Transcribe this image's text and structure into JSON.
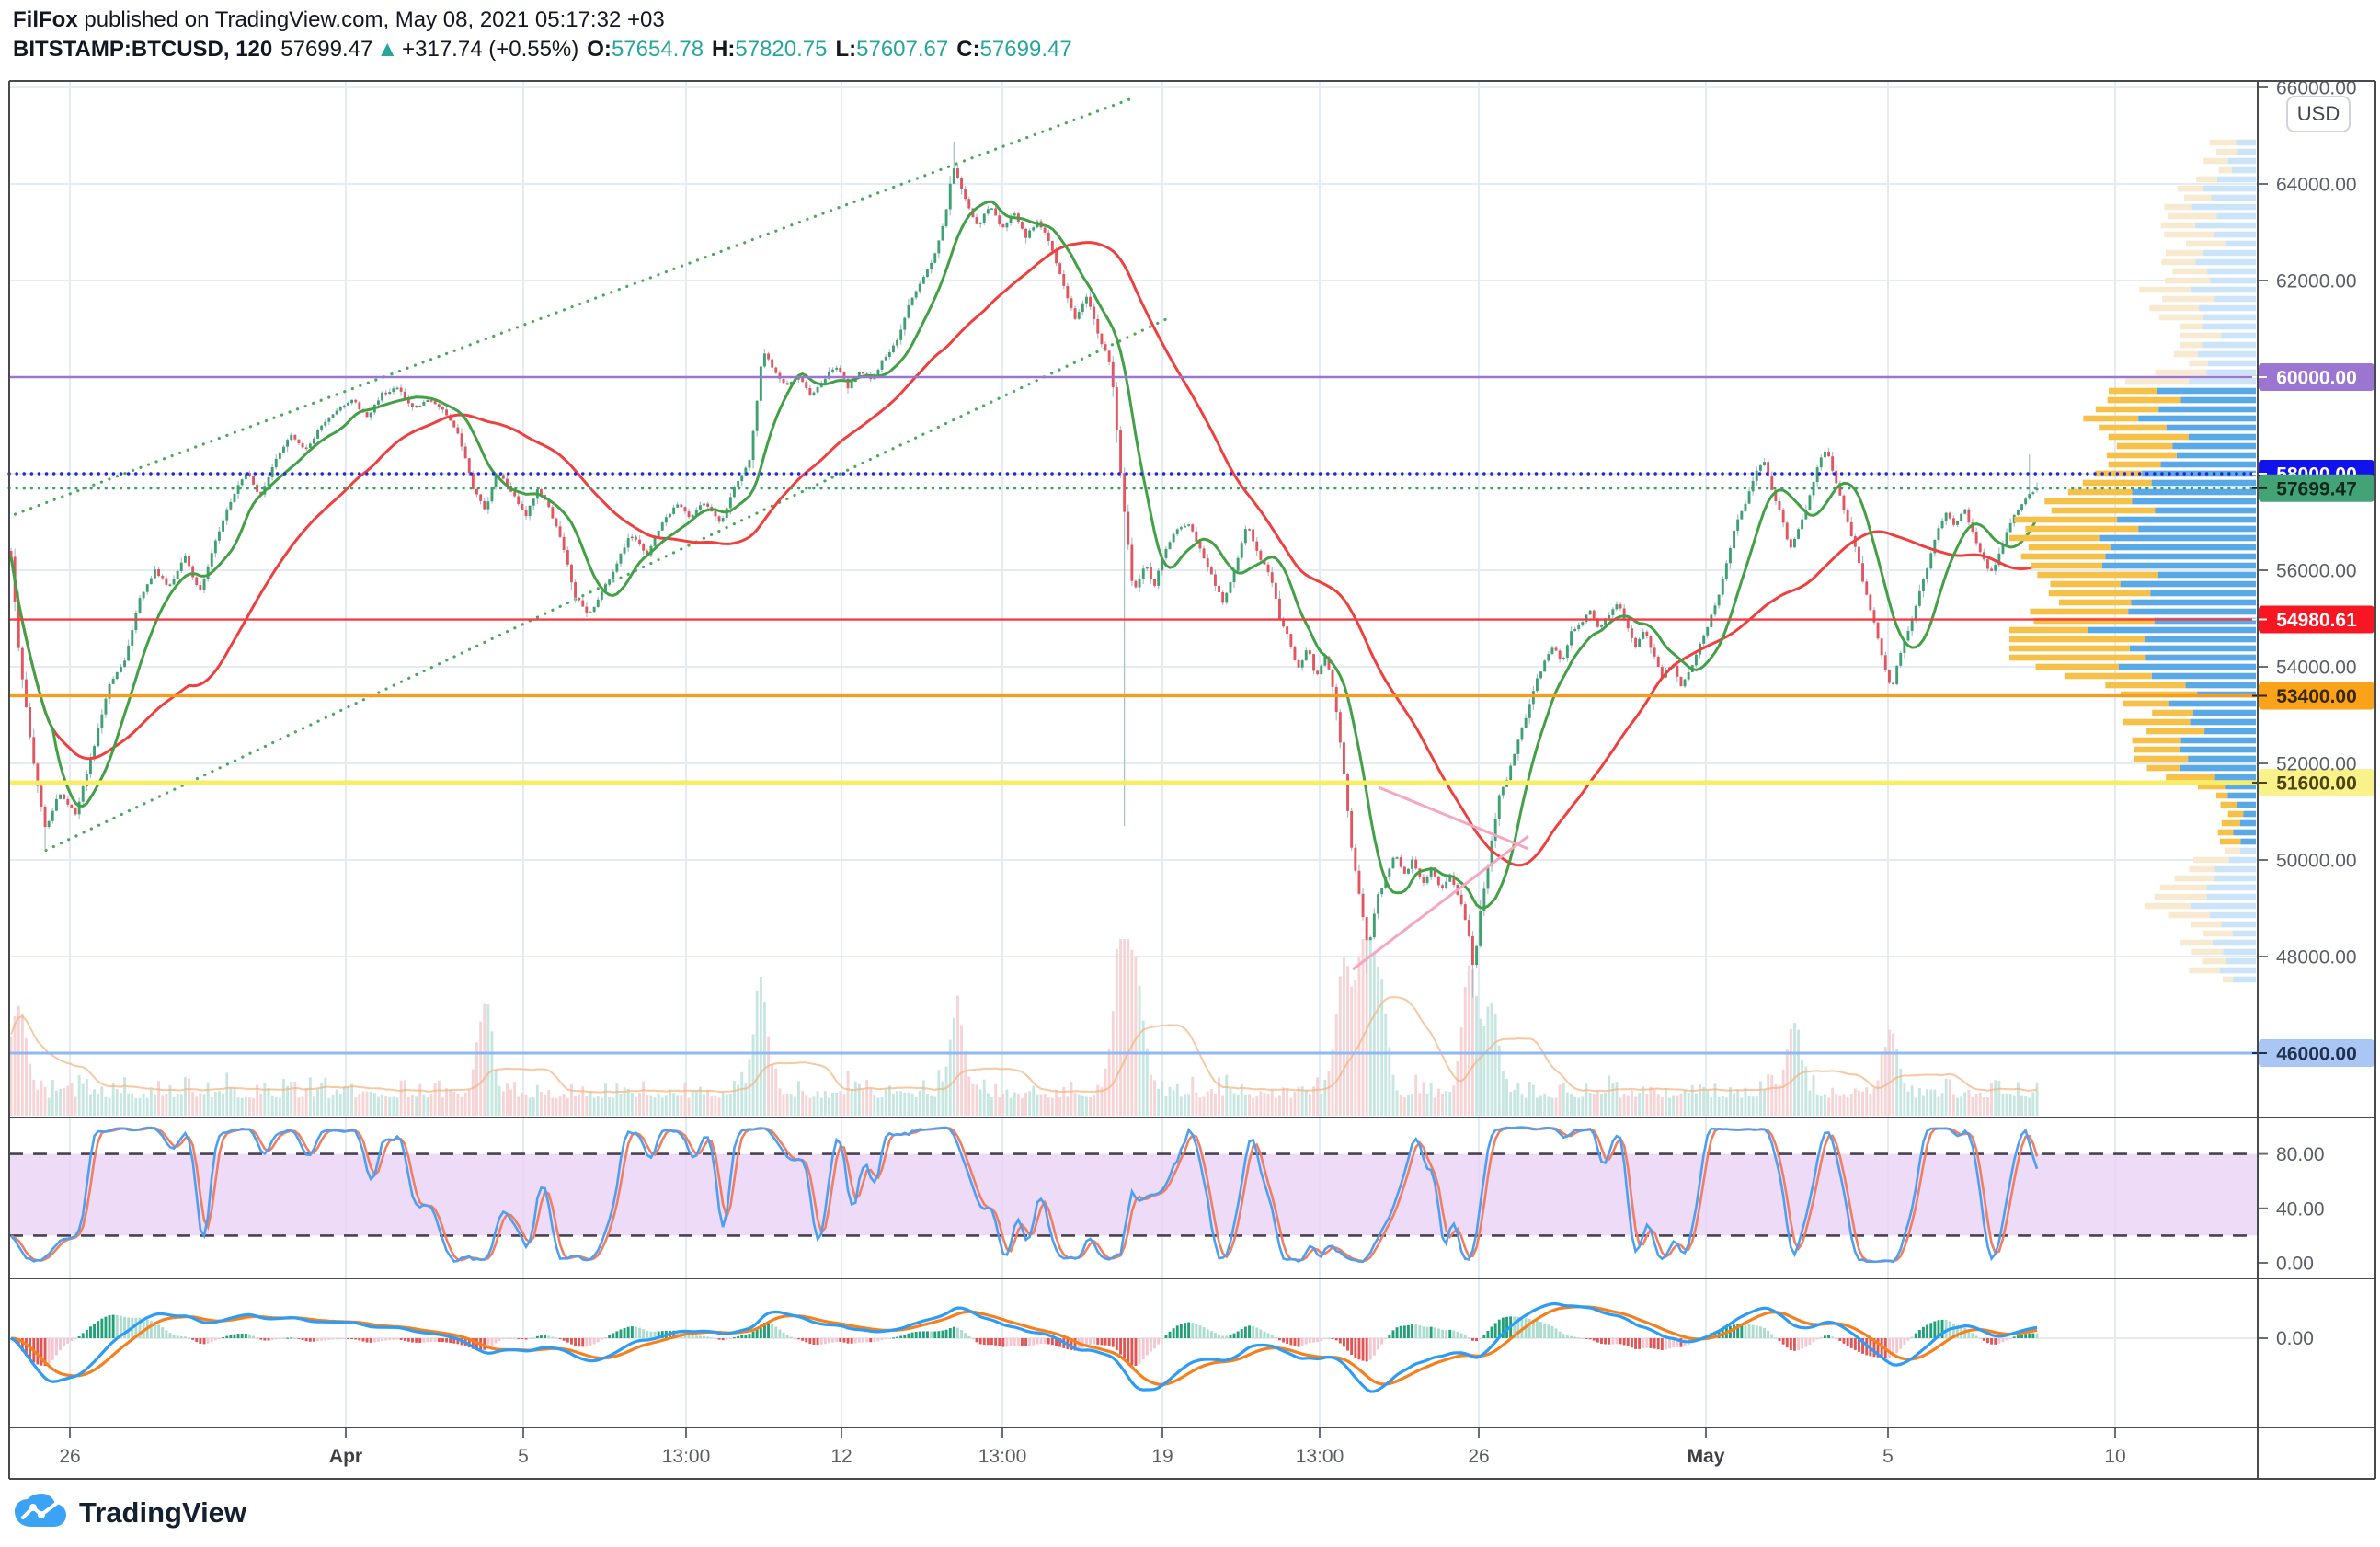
{
  "header": {
    "line1_bold": "FilFox",
    "line1_rest": " published on TradingView.com, May 08, 2021 05:17:32 +03",
    "symbol": "BITSTAMP:BTCUSD, 120",
    "price": "57699.47",
    "arrow": "▲",
    "change": "+317.74 (+0.55%)",
    "o_label": "O:",
    "o_value": "57654.78",
    "h_label": "H:",
    "h_value": "57820.75",
    "l_label": "L:",
    "l_value": "57607.67",
    "c_label": "C:",
    "c_value": "57699.47"
  },
  "price_axis": {
    "currency": "USD",
    "plain_ticks": [
      {
        "price": 66000,
        "label": "66000.00"
      },
      {
        "price": 64000,
        "label": "64000.00"
      },
      {
        "price": 62000,
        "label": "62000.00"
      },
      {
        "price": 56000,
        "label": "56000.00"
      },
      {
        "price": 54000,
        "label": "54000.00"
      },
      {
        "price": 52000,
        "label": "52000.00"
      },
      {
        "price": 50000,
        "label": "50000.00"
      },
      {
        "price": 48000,
        "label": "48000.00"
      }
    ]
  },
  "indicator_axis": {
    "stoch_ticks": [
      {
        "value": 80,
        "label": "80.00"
      },
      {
        "value": 40,
        "label": "40.00"
      },
      {
        "value": 0,
        "label": "0.00"
      }
    ],
    "macd_ticks": [
      {
        "value": 0,
        "label": "0.00"
      }
    ]
  },
  "logo": {
    "text": "TradingView"
  },
  "colors": {
    "up": "#3fa172",
    "down": "#e4565f",
    "wick": "#a6becb",
    "ma_fast": "#43a047",
    "ma_slow": "#ef4040",
    "grid": "#e4ebf2",
    "frame": "#474b50",
    "axis_text": "#595d66",
    "vol_up": "#c8e6e0",
    "vol_down": "#f6d4d6",
    "vol_ma": "#f4b079",
    "profile_yellow": "#f5c149",
    "profile_blue": "#59a9e6",
    "profile_pale_yellow": "#f8ead0",
    "profile_pale_blue": "#cbe4f7",
    "channel": "#3fa651",
    "triangle": "#f4a7c0",
    "stoch_k": "#4f9ff0",
    "stoch_d": "#ef7f63",
    "stoch_band": "#e8d2f6",
    "stoch_dash": "#494351",
    "macd_line": "#2d9cf4",
    "macd_signal": "#f5801e",
    "hist_pos": "#22a07a",
    "hist_pos_pale": "#abdcce",
    "hist_neg": "#e25555",
    "hist_neg_pale": "#f6c6d0"
  },
  "chart_data": {
    "type": "candlestick",
    "symbol": "BITSTAMP:BTCUSD",
    "interval": "120",
    "title": "BTC/USD 2-hour chart, Bitstamp, published May 08 2021 05:17:32 +03",
    "ylabel": "USD",
    "ylim": [
      45600,
      66200
    ],
    "grid": true,
    "bars": 536,
    "ohlc_current": {
      "open": 57654.78,
      "high": 57820.75,
      "low": 57607.67,
      "close": 57699.47,
      "change": 317.74,
      "change_pct": 0.55
    },
    "x_ticks": [
      {
        "x": 76,
        "label": "26"
      },
      {
        "x": 376,
        "label": "Apr",
        "major": true
      },
      {
        "x": 569,
        "label": "5"
      },
      {
        "x": 746,
        "label": "13:00"
      },
      {
        "x": 915,
        "label": "12"
      },
      {
        "x": 1090,
        "label": "13:00"
      },
      {
        "x": 1264,
        "label": "19"
      },
      {
        "x": 1435,
        "label": "13:00"
      },
      {
        "x": 1608,
        "label": "26"
      },
      {
        "x": 1855,
        "label": "May",
        "major": true
      },
      {
        "x": 2053,
        "label": "5"
      },
      {
        "x": 2300,
        "label": "10"
      }
    ],
    "levels": [
      {
        "price": 60000,
        "color": "#9b76d0",
        "style": "solid",
        "width": 2.6,
        "badge": "60000.00",
        "badge_bg": "#9b76d0",
        "badge_fg": "#ffffff"
      },
      {
        "price": 58000,
        "color": "#2326dd",
        "style": "dotted",
        "width": 3.4,
        "badge": "58000.00",
        "badge_bg": "#1212ef",
        "badge_fg": "#ffffff"
      },
      {
        "price": 57699.47,
        "color": "#3aa06c",
        "style": "dotted",
        "width": 3.2,
        "badge": "57699.47",
        "badge_bg": "#43a377",
        "badge_fg": "#0e2a1c"
      },
      {
        "price": 54980.61,
        "color": "#f43b47",
        "style": "solid",
        "width": 2.4,
        "badge": "54980.61",
        "badge_bg": "#f71622",
        "badge_fg": "#ffffff"
      },
      {
        "price": 53400,
        "color": "#f89c1b",
        "style": "solid",
        "width": 3.2,
        "badge": "53400.00",
        "badge_bg": "#f9a21a",
        "badge_fg": "#3a2703"
      },
      {
        "price": 51600,
        "color": "#f7ee64",
        "style": "solid",
        "width": 5,
        "badge": "51600.00",
        "badge_bg": "#f9f28b",
        "badge_fg": "#4c440c"
      },
      {
        "price": 46000,
        "color": "#8fb8f4",
        "style": "solid",
        "width": 3,
        "badge": "46000.00",
        "badge_bg": "#a9c6f5",
        "badge_fg": "#20304f"
      }
    ],
    "channel_lines": [
      {
        "x1": 8,
        "p1": 57100,
        "x2": 1235,
        "p2": 65800,
        "note": "ascending channel upper"
      },
      {
        "x1": 50,
        "p1": 50200,
        "x2": 1268,
        "p2": 61200,
        "note": "ascending channel lower"
      }
    ],
    "triangle_pattern": {
      "apex": [
        1648,
        917
      ],
      "upper_left": [
        1499,
        856
      ],
      "lower_left": [
        1471,
        1054
      ]
    },
    "price_anchors": [
      [
        0,
        56300
      ],
      [
        0.004,
        54250
      ],
      [
        0.011,
        52050
      ],
      [
        0.017,
        50650
      ],
      [
        0.024,
        51400
      ],
      [
        0.032,
        50950
      ],
      [
        0.041,
        52350
      ],
      [
        0.048,
        53600
      ],
      [
        0.056,
        54100
      ],
      [
        0.063,
        55350
      ],
      [
        0.071,
        56000
      ],
      [
        0.078,
        55650
      ],
      [
        0.086,
        56300
      ],
      [
        0.093,
        55500
      ],
      [
        0.101,
        56600
      ],
      [
        0.108,
        57400
      ],
      [
        0.116,
        58050
      ],
      [
        0.123,
        57550
      ],
      [
        0.131,
        58350
      ],
      [
        0.138,
        58800
      ],
      [
        0.146,
        58500
      ],
      [
        0.153,
        59000
      ],
      [
        0.161,
        59300
      ],
      [
        0.168,
        59550
      ],
      [
        0.176,
        59150
      ],
      [
        0.183,
        59650
      ],
      [
        0.191,
        59800
      ],
      [
        0.198,
        59350
      ],
      [
        0.206,
        59550
      ],
      [
        0.213,
        59300
      ],
      [
        0.221,
        58800
      ],
      [
        0.228,
        57700
      ],
      [
        0.234,
        57250
      ],
      [
        0.24,
        58050
      ],
      [
        0.248,
        57550
      ],
      [
        0.254,
        57100
      ],
      [
        0.26,
        57700
      ],
      [
        0.266,
        57250
      ],
      [
        0.272,
        56600
      ],
      [
        0.278,
        55500
      ],
      [
        0.285,
        55050
      ],
      [
        0.293,
        55650
      ],
      [
        0.299,
        56150
      ],
      [
        0.306,
        56750
      ],
      [
        0.314,
        56300
      ],
      [
        0.321,
        56950
      ],
      [
        0.329,
        57400
      ],
      [
        0.335,
        57100
      ],
      [
        0.342,
        57400
      ],
      [
        0.35,
        56950
      ],
      [
        0.357,
        57700
      ],
      [
        0.365,
        58350
      ],
      [
        0.371,
        60550
      ],
      [
        0.377,
        60100
      ],
      [
        0.383,
        59800
      ],
      [
        0.389,
        60000
      ],
      [
        0.395,
        59600
      ],
      [
        0.401,
        59950
      ],
      [
        0.407,
        60250
      ],
      [
        0.413,
        59800
      ],
      [
        0.419,
        60100
      ],
      [
        0.425,
        59950
      ],
      [
        0.431,
        60400
      ],
      [
        0.437,
        60700
      ],
      [
        0.443,
        61500
      ],
      [
        0.449,
        62000
      ],
      [
        0.455,
        62450
      ],
      [
        0.461,
        63300
      ],
      [
        0.465,
        64400
      ],
      [
        0.471,
        63700
      ],
      [
        0.477,
        63100
      ],
      [
        0.483,
        63550
      ],
      [
        0.489,
        63100
      ],
      [
        0.495,
        63400
      ],
      [
        0.501,
        62900
      ],
      [
        0.507,
        63250
      ],
      [
        0.513,
        62750
      ],
      [
        0.519,
        62000
      ],
      [
        0.525,
        61200
      ],
      [
        0.531,
        61650
      ],
      [
        0.537,
        60850
      ],
      [
        0.543,
        60250
      ],
      [
        0.549,
        57400
      ],
      [
        0.554,
        55500
      ],
      [
        0.56,
        56150
      ],
      [
        0.564,
        55650
      ],
      [
        0.57,
        56450
      ],
      [
        0.575,
        56800
      ],
      [
        0.581,
        56950
      ],
      [
        0.587,
        56450
      ],
      [
        0.593,
        55850
      ],
      [
        0.598,
        55350
      ],
      [
        0.604,
        56000
      ],
      [
        0.61,
        56950
      ],
      [
        0.616,
        56300
      ],
      [
        0.622,
        55850
      ],
      [
        0.626,
        55050
      ],
      [
        0.631,
        54550
      ],
      [
        0.635,
        53950
      ],
      [
        0.64,
        54400
      ],
      [
        0.644,
        53800
      ],
      [
        0.649,
        54250
      ],
      [
        0.653,
        53450
      ],
      [
        0.658,
        51750
      ],
      [
        0.662,
        50150
      ],
      [
        0.667,
        48900
      ],
      [
        0.67,
        48100
      ],
      [
        0.674,
        49200
      ],
      [
        0.679,
        49700
      ],
      [
        0.683,
        50150
      ],
      [
        0.688,
        49700
      ],
      [
        0.692,
        50000
      ],
      [
        0.697,
        49500
      ],
      [
        0.701,
        49850
      ],
      [
        0.706,
        49350
      ],
      [
        0.71,
        49700
      ],
      [
        0.715,
        49200
      ],
      [
        0.719,
        48600
      ],
      [
        0.722,
        47700
      ],
      [
        0.725,
        48900
      ],
      [
        0.73,
        50150
      ],
      [
        0.734,
        51250
      ],
      [
        0.739,
        51750
      ],
      [
        0.743,
        52350
      ],
      [
        0.748,
        53000
      ],
      [
        0.752,
        53600
      ],
      [
        0.757,
        54100
      ],
      [
        0.761,
        54400
      ],
      [
        0.766,
        54100
      ],
      [
        0.77,
        54700
      ],
      [
        0.775,
        54900
      ],
      [
        0.779,
        55200
      ],
      [
        0.784,
        54750
      ],
      [
        0.788,
        55050
      ],
      [
        0.793,
        55350
      ],
      [
        0.797,
        54900
      ],
      [
        0.802,
        54400
      ],
      [
        0.806,
        54750
      ],
      [
        0.811,
        54250
      ],
      [
        0.815,
        53800
      ],
      [
        0.82,
        54100
      ],
      [
        0.824,
        53600
      ],
      [
        0.829,
        53950
      ],
      [
        0.833,
        54400
      ],
      [
        0.838,
        54900
      ],
      [
        0.842,
        55350
      ],
      [
        0.847,
        56200
      ],
      [
        0.851,
        56900
      ],
      [
        0.856,
        57400
      ],
      [
        0.86,
        57900
      ],
      [
        0.865,
        58300
      ],
      [
        0.869,
        57700
      ],
      [
        0.874,
        57100
      ],
      [
        0.878,
        56400
      ],
      [
        0.883,
        56900
      ],
      [
        0.887,
        57400
      ],
      [
        0.892,
        58200
      ],
      [
        0.896,
        58500
      ],
      [
        0.901,
        57800
      ],
      [
        0.905,
        57200
      ],
      [
        0.91,
        56500
      ],
      [
        0.914,
        55800
      ],
      [
        0.919,
        55000
      ],
      [
        0.923,
        54300
      ],
      [
        0.928,
        53500
      ],
      [
        0.932,
        54200
      ],
      [
        0.937,
        54800
      ],
      [
        0.941,
        55400
      ],
      [
        0.946,
        56100
      ],
      [
        0.95,
        56700
      ],
      [
        0.955,
        57200
      ],
      [
        0.959,
        56900
      ],
      [
        0.964,
        57300
      ],
      [
        0.968,
        56800
      ],
      [
        0.973,
        56300
      ],
      [
        0.977,
        55900
      ],
      [
        0.982,
        56400
      ],
      [
        0.986,
        56900
      ],
      [
        0.991,
        57300
      ],
      [
        0.995,
        57500
      ],
      [
        1,
        57699.47
      ]
    ],
    "extremes": [
      [
        0.017,
        "low",
        50200
      ],
      [
        0.465,
        "high",
        64880
      ],
      [
        0.549,
        "low",
        50700
      ],
      [
        0.67,
        "low",
        47650
      ],
      [
        0.722,
        "low",
        47150
      ],
      [
        0.996,
        "high",
        58400
      ]
    ],
    "volume_spikes": [
      [
        0.004,
        0.5
      ],
      [
        0.234,
        0.5
      ],
      [
        0.37,
        0.62
      ],
      [
        0.467,
        0.5
      ],
      [
        0.548,
        0.95
      ],
      [
        0.556,
        0.6
      ],
      [
        0.658,
        0.78
      ],
      [
        0.668,
        0.9
      ],
      [
        0.676,
        0.6
      ],
      [
        0.72,
        0.75
      ],
      [
        0.731,
        0.5
      ],
      [
        0.88,
        0.42
      ],
      [
        0.928,
        0.38
      ]
    ],
    "volume_profile": {
      "anchor_x": 2453,
      "row_pitch": 10,
      "price_top": 65000,
      "price_bottom": 47400,
      "value_area": [
        50250,
        59900
      ],
      "peaks": [
        [
          56700,
          1100,
          0.95
        ],
        [
          54300,
          800,
          0.85
        ],
        [
          59300,
          700,
          0.6
        ],
        [
          52200,
          600,
          0.5
        ],
        [
          61800,
          800,
          0.42
        ],
        [
          63600,
          500,
          0.3
        ],
        [
          49300,
          700,
          0.38
        ],
        [
          47900,
          350,
          0.18
        ],
        [
          64700,
          260,
          0.15
        ]
      ]
    },
    "indicators": {
      "overlay_fast_sma": 12,
      "overlay_slow_sma": 48,
      "stochastic": {
        "k": 14,
        "smooth": 3,
        "d": 3,
        "band": [
          20,
          80
        ],
        "ticks": [
          80,
          40,
          0
        ]
      },
      "macd": {
        "fast": 12,
        "slow": 26,
        "signal": 9,
        "ticks": [
          0
        ]
      }
    }
  }
}
